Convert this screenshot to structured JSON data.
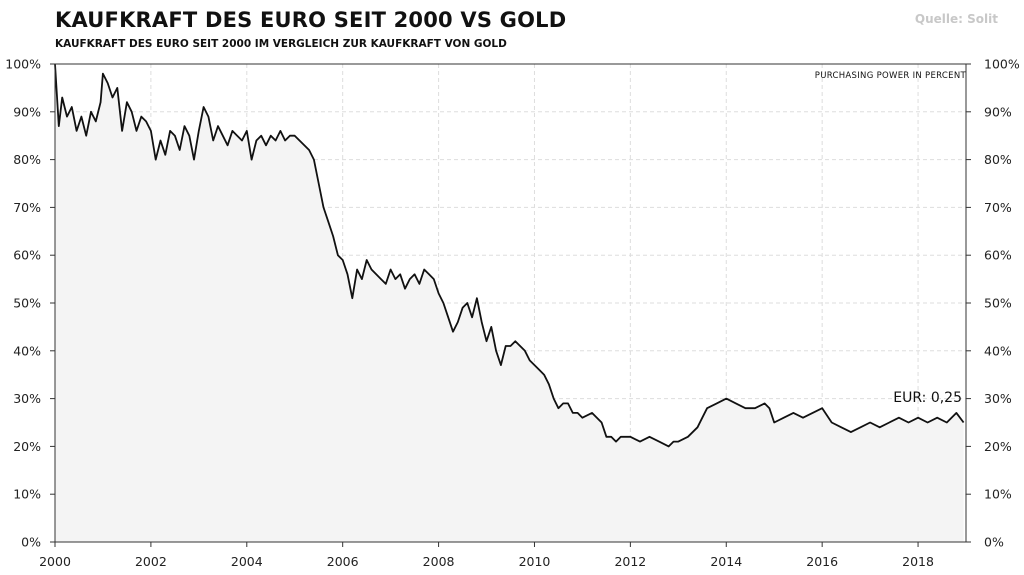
{
  "header": {
    "title": "KAUFKRAFT DES EURO SEIT 2000 VS GOLD",
    "subtitle": "KAUFKRAFT DES EURO SEIT 2000 IM VERGLEICH ZUR KAUFKRAFT VON GOLD",
    "source": "Quelle: Solit"
  },
  "colors": {
    "line": "#111111",
    "area_fill": "#f4f4f4",
    "grid": "#dddddd",
    "axis": "#333333",
    "source_text": "#c8c8c8"
  },
  "chart_data": {
    "type": "area",
    "title": "KAUFKRAFT DES EURO SEIT 2000 VS GOLD",
    "subtitle": "KAUFKRAFT DES EURO SEIT 2000 IM VERGLEICH ZUR KAUFKRAFT VON GOLD",
    "unit_label": "PURCHASING POWER IN PERCENT",
    "end_label": "EUR: 0,25",
    "xlim": [
      2000,
      2019
    ],
    "ylim": [
      0,
      100
    ],
    "x_ticks": [
      2000,
      2002,
      2004,
      2006,
      2008,
      2010,
      2012,
      2014,
      2016,
      2018
    ],
    "x_tick_labels": [
      "2000",
      "2002",
      "2004",
      "2006",
      "2008",
      "2010",
      "2012",
      "2014",
      "2016",
      "2018"
    ],
    "y_ticks": [
      0,
      10,
      20,
      30,
      40,
      50,
      60,
      70,
      80,
      90,
      100
    ],
    "y_tick_labels": [
      "0%",
      "10%",
      "20%",
      "30%",
      "40%",
      "50%",
      "60%",
      "70%",
      "80%",
      "90%",
      "100%"
    ],
    "grid": true,
    "dual_y_axis": true,
    "series": [
      {
        "x": [
          2000,
          2000.08,
          2000.15,
          2000.25,
          2000.35,
          2000.45,
          2000.55,
          2000.65,
          2000.75,
          2000.85,
          2000.95,
          2001.0,
          2001.1,
          2001.2,
          2001.3,
          2001.4,
          2001.5,
          2001.6,
          2001.7,
          2001.8,
          2001.9,
          2002.0,
          2002.1,
          2002.2,
          2002.3,
          2002.4,
          2002.5,
          2002.6,
          2002.7,
          2002.8,
          2002.9,
          2003.0,
          2003.1,
          2003.2,
          2003.3,
          2003.4,
          2003.5,
          2003.6,
          2003.7,
          2003.8,
          2003.9,
          2004.0,
          2004.1,
          2004.2,
          2004.3,
          2004.4,
          2004.5,
          2004.6,
          2004.7,
          2004.8,
          2004.9,
          2005.0,
          2005.1,
          2005.2,
          2005.3,
          2005.4,
          2005.5,
          2005.6,
          2005.7,
          2005.8,
          2005.9,
          2006.0,
          2006.1,
          2006.2,
          2006.3,
          2006.4,
          2006.5,
          2006.6,
          2006.7,
          2006.8,
          2006.9,
          2007.0,
          2007.1,
          2007.2,
          2007.3,
          2007.4,
          2007.5,
          2007.6,
          2007.7,
          2007.8,
          2007.9,
          2008.0,
          2008.1,
          2008.2,
          2008.3,
          2008.4,
          2008.5,
          2008.6,
          2008.7,
          2008.8,
          2008.9,
          2009.0,
          2009.1,
          2009.2,
          2009.3,
          2009.4,
          2009.5,
          2009.6,
          2009.7,
          2009.8,
          2009.9,
          2010.0,
          2010.1,
          2010.2,
          2010.3,
          2010.4,
          2010.5,
          2010.6,
          2010.7,
          2010.8,
          2010.9,
          2011.0,
          2011.2,
          2011.4,
          2011.5,
          2011.6,
          2011.7,
          2011.8,
          2012.0,
          2012.2,
          2012.4,
          2012.6,
          2012.8,
          2012.9,
          2013.0,
          2013.2,
          2013.4,
          2013.5,
          2013.6,
          2013.8,
          2014.0,
          2014.2,
          2014.4,
          2014.6,
          2014.8,
          2014.9,
          2015.0,
          2015.2,
          2015.4,
          2015.6,
          2015.8,
          2016.0,
          2016.2,
          2016.4,
          2016.6,
          2016.8,
          2017.0,
          2017.2,
          2017.4,
          2017.6,
          2017.8,
          2018.0,
          2018.2,
          2018.4,
          2018.6,
          2018.8,
          2018.95
        ],
        "values": [
          100,
          87,
          93,
          89,
          91,
          86,
          89,
          85,
          90,
          88,
          92,
          98,
          96,
          93,
          95,
          86,
          92,
          90,
          86,
          89,
          88,
          86,
          80,
          84,
          81,
          86,
          85,
          82,
          87,
          85,
          80,
          86,
          91,
          89,
          84,
          87,
          85,
          83,
          86,
          85,
          84,
          86,
          80,
          84,
          85,
          83,
          85,
          84,
          86,
          84,
          85,
          85,
          84,
          83,
          82,
          80,
          75,
          70,
          67,
          64,
          60,
          59,
          56,
          51,
          57,
          55,
          59,
          57,
          56,
          55,
          54,
          57,
          55,
          56,
          53,
          55,
          56,
          54,
          57,
          56,
          55,
          52,
          50,
          47,
          44,
          46,
          49,
          50,
          47,
          51,
          46,
          42,
          45,
          40,
          37,
          41,
          41,
          42,
          41,
          40,
          38,
          37,
          36,
          35,
          33,
          30,
          28,
          29,
          29,
          27,
          27,
          26,
          27,
          25,
          22,
          22,
          21,
          22,
          22,
          21,
          22,
          21,
          20,
          21,
          21,
          22,
          24,
          26,
          28,
          29,
          30,
          29,
          28,
          28,
          29,
          28,
          25,
          26,
          27,
          26,
          27,
          28,
          25,
          24,
          23,
          24,
          25,
          24,
          25,
          26,
          25,
          26,
          25,
          26,
          25,
          27,
          25
        ]
      }
    ]
  }
}
